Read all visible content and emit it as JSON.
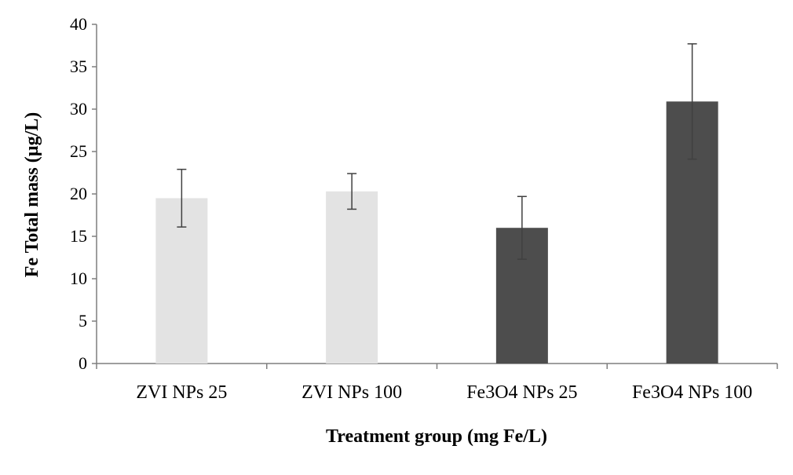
{
  "chart_data": {
    "type": "bar",
    "xlabel": "Treatment group (mg Fe/L)",
    "ylabel": "Fe Total mass (µg/L)",
    "categories": [
      "ZVI NPs 25",
      "ZVI NPs 100",
      "Fe3O4 NPs 25",
      "Fe3O4 NPs 100"
    ],
    "values": [
      19.5,
      20.3,
      16.0,
      30.9
    ],
    "errors": [
      3.4,
      2.1,
      3.7,
      6.8
    ],
    "bar_colors": [
      "#e3e3e3",
      "#e3e3e3",
      "#4d4d4d",
      "#4d4d4d"
    ],
    "ylim": [
      0,
      40
    ],
    "yticks": [
      "0",
      "5",
      "10",
      "15",
      "20",
      "25",
      "30",
      "35",
      "40"
    ],
    "grid": false,
    "legend": "none"
  }
}
